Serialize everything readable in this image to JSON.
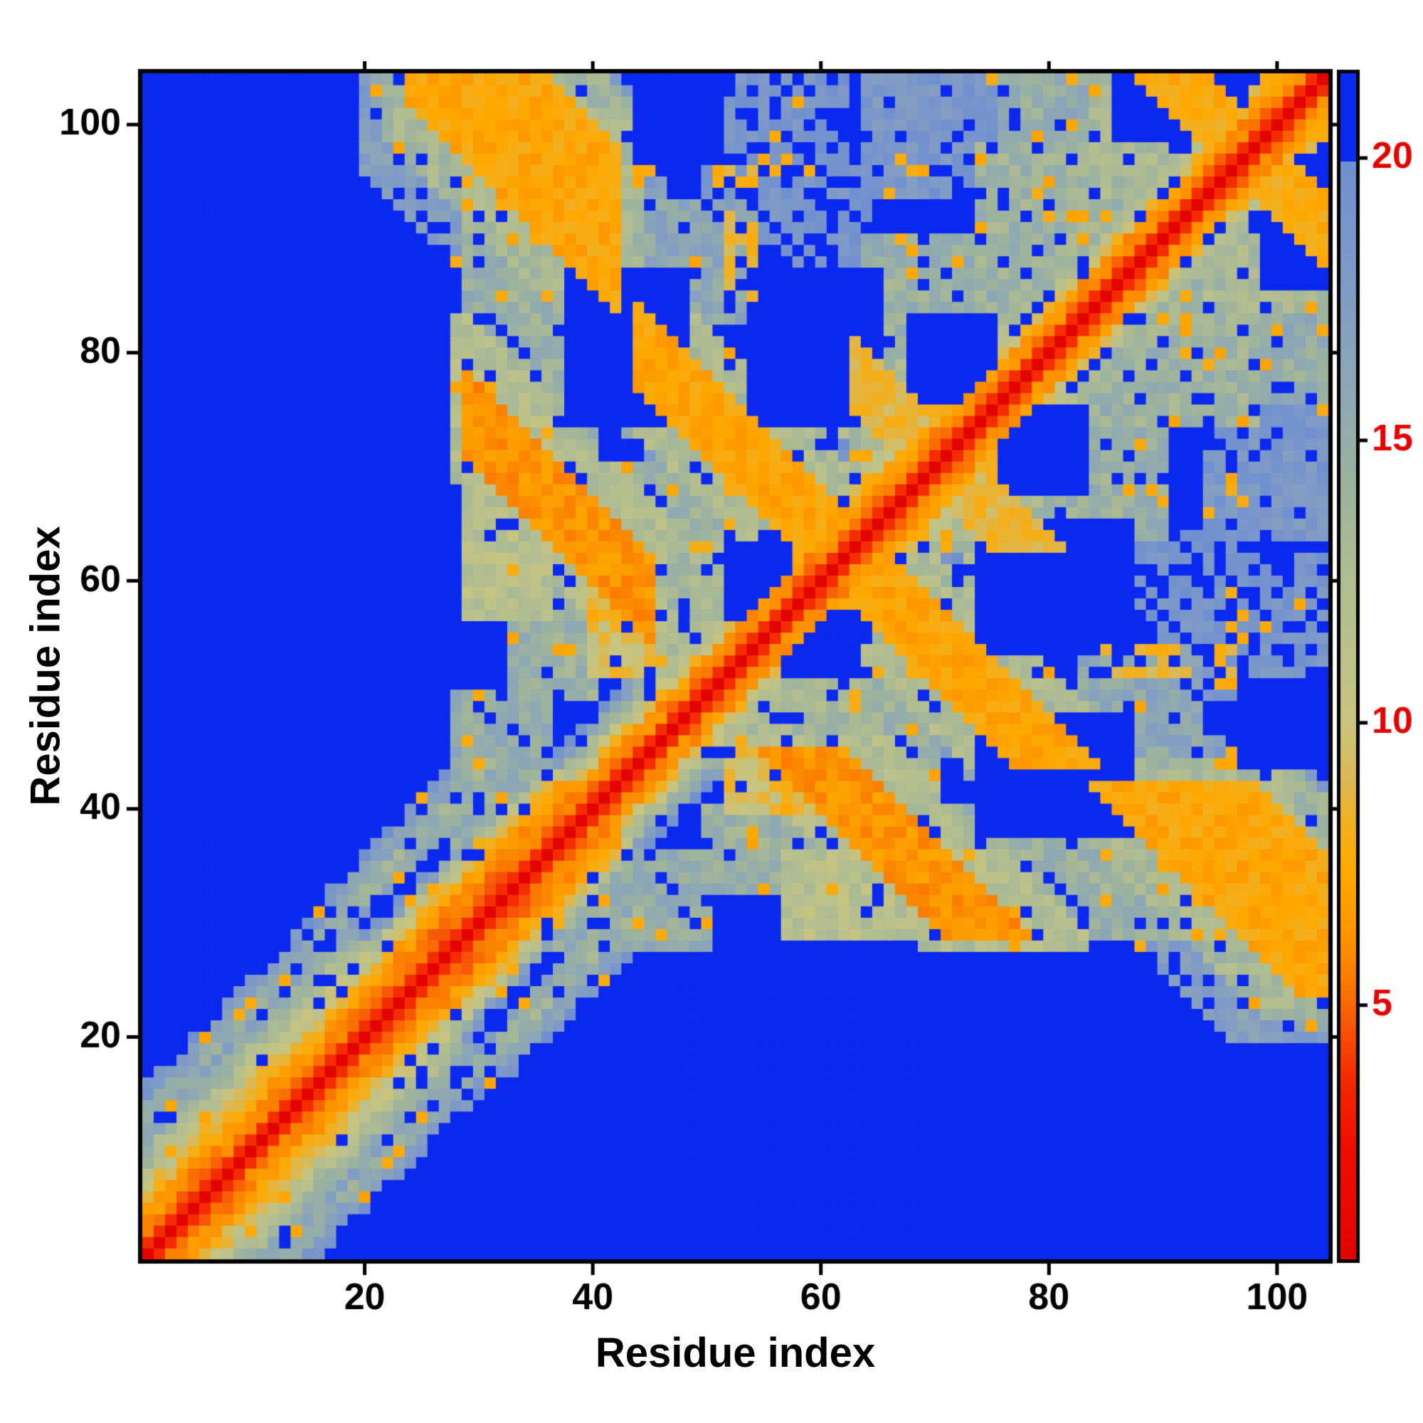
{
  "figure": {
    "xlabel": "Residue index",
    "ylabel": "Residue index"
  },
  "chart_data": {
    "type": "heatmap",
    "title": "",
    "xlabel": "Residue index",
    "ylabel": "Residue index",
    "x_range": [
      1,
      104
    ],
    "y_range": [
      1,
      104
    ],
    "x_ticks": [
      20,
      40,
      60,
      80,
      100
    ],
    "y_ticks": [
      20,
      40,
      60,
      80,
      100
    ],
    "n": 104,
    "grid": false,
    "colorbar": {
      "ticks": [
        5,
        10,
        15,
        20
      ],
      "vmin": 0.5,
      "vmax": 21.5,
      "clamp_high": 20
    },
    "palette": {
      "deep_blue": "#0a28ee",
      "frame": "#000000",
      "background": "#ffffff"
    },
    "colormap": [
      [
        0.4,
        "#e10300"
      ],
      [
        2.5,
        "#ee0e00"
      ],
      [
        3.8,
        "#f42d00"
      ],
      [
        4.6,
        "#f75408"
      ],
      [
        5.4,
        "#fa7a00"
      ],
      [
        6.3,
        "#fc9500"
      ],
      [
        7.3,
        "#ffa800"
      ],
      [
        8.2,
        "#f2af1e"
      ],
      [
        9.0,
        "#dcb954"
      ],
      [
        10.0,
        "#c8c47e"
      ],
      [
        11.2,
        "#bcc28c"
      ],
      [
        12.8,
        "#aebb92"
      ],
      [
        14.2,
        "#9db39f"
      ],
      [
        15.6,
        "#90a9b0"
      ],
      [
        17.0,
        "#86a0c0"
      ],
      [
        18.4,
        "#7b97c9"
      ],
      [
        19.9,
        "#7090cf"
      ]
    ],
    "matrix_model": {
      "comment": "symmetric CA-CA distance map, Angstrom; band = near-diagonal profile by sequence position s=(i+j)/2; rects/halos/cores/holes encode observed contact blocks, anti-diagonal hairpin streaks and empty (beyond-cutoff) voids",
      "zones": [
        {
          "smax": 24,
          "p": [
            0.5,
            3.8,
            5.4,
            6.0,
            7.0,
            8.5,
            9.8,
            11,
            12.5,
            13.5,
            15,
            16,
            15.2,
            16,
            17.5,
            19,
            20.5
          ]
        },
        {
          "smax": 40,
          "p": [
            0.5,
            3.8,
            5.2,
            5.6,
            6.4,
            7.2,
            9.5,
            12,
            16,
            19.5,
            21,
            16.5,
            15,
            14.5,
            15.5,
            17,
            19.5
          ]
        },
        {
          "smax": 58,
          "p": [
            0.5,
            3.8,
            5.7,
            6.5,
            9,
            11.5,
            13.5,
            16,
            18.5,
            20.5
          ]
        },
        {
          "smax": 74,
          "p": [
            0.5,
            3.8,
            5.5,
            6.2,
            7.8,
            9.5,
            11,
            13,
            15.5,
            17.5,
            19.5
          ]
        },
        {
          "smax": 96,
          "p": [
            0.5,
            3.8,
            5.7,
            6.5,
            9,
            11.5,
            13.5,
            16,
            18.5,
            20.5
          ]
        },
        {
          "smax": 999,
          "p": [
            0.5,
            3.8,
            5.5,
            6.2,
            7.5,
            9,
            10.5,
            12.5,
            14.5,
            16.5,
            18.5
          ]
        }
      ],
      "rects": [
        [
          29,
          40,
          72,
          92,
          14.5
        ],
        [
          29,
          36,
          57,
          76,
          11.8
        ],
        [
          36,
          46,
          57,
          70,
          14.8
        ],
        [
          43,
          56,
          54,
          64,
          13.4
        ],
        [
          40,
          45,
          52,
          60,
          9.5
        ],
        [
          33,
          40,
          50,
          57,
          14.5
        ],
        [
          46,
          60,
          62,
          76,
          14.3
        ],
        [
          64,
          78,
          79,
          90,
          14.6
        ],
        [
          74,
          86,
          86,
          98,
          14.2
        ],
        [
          84,
          94,
          94,
          104,
          13.2
        ],
        [
          96,
          104,
          96,
          104,
          12.5
        ],
        [
          76,
          88,
          98,
          104,
          15.0
        ],
        [
          64,
          76,
          94,
          104,
          18.5
        ],
        [
          52,
          62,
          96,
          104,
          19.2
        ],
        [
          28,
          48,
          90,
          93,
          16.8
        ],
        [
          44,
          54,
          83,
          93,
          15.8
        ],
        [
          28,
          36,
          36,
          50,
          15.0
        ],
        [
          50,
          64,
          86,
          96,
          19.3
        ],
        [
          23,
          27,
          98,
          104,
          19.0
        ]
      ],
      "halos": [
        [
          20,
          46,
          116,
          150,
          17
        ],
        [
          22,
          44,
          121,
          145,
          13.5
        ],
        [
          28,
          46,
          97,
          112,
          12.3
        ],
        [
          42,
          64,
          117,
          132,
          12.8
        ],
        [
          62,
          74,
          135,
          148,
          13.5
        ],
        [
          86,
          104,
          188,
          202,
          13.0
        ]
      ],
      "holes": [
        [
          38,
          48,
          74,
          87
        ],
        [
          54,
          65,
          74,
          87
        ],
        [
          68,
          75,
          76,
          83
        ],
        [
          52,
          57,
          57,
          63
        ],
        [
          44,
          51,
          97,
          104
        ],
        [
          86,
          97,
          99,
          104
        ]
      ],
      "cores": [
        [
          24,
          42,
          126,
          140,
          7.3
        ],
        [
          29,
          45,
          100,
          107,
          6.3
        ],
        [
          44,
          62,
          121,
          128,
          7.2
        ],
        [
          63,
          72,
          138,
          144,
          8.8
        ],
        [
          88,
          102,
          192,
          198,
          7.6
        ]
      ],
      "strings": [
        [
          52,
          54,
          85,
          96,
          8.4
        ]
      ],
      "noise": {
        "p_blue": 0.1,
        "p_orange": 0.955,
        "jitter_mid": 3.2,
        "jitter_low": 1.8
      }
    }
  }
}
